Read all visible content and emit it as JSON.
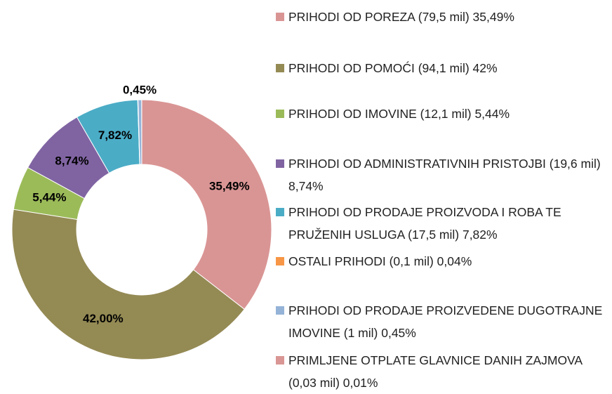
{
  "chart_data": {
    "type": "donut",
    "categories": [
      "PRIHODI OD POREZA (79,5 mil) 35,49%",
      "PRIHODI OD POMOĆI (94,1 mil) 42%",
      "PRIHODI OD IMOVINE (12,1 mil) 5,44%",
      "PRIHODI OD ADMINISTRATIVNIH PRISTOJBI (19,6 mil) 8,74%",
      "PRIHODI OD PRODAJE PROIZVODA I ROBA TE PRUŽENIH USLUGA (17,5 mil) 7,82%",
      "OSTALI PRIHODI (0,1 mil) 0,04%",
      "PRIHODI OD PRODAJE PROIZVEDENE DUGOTRAJNE IMOVINE (1 mil) 0,45%",
      "PRIMLJENE OTPLATE GLAVNICE DANIH ZAJMOVA (0,03 mil) 0,01%"
    ],
    "values": [
      35.49,
      42,
      5.44,
      8.74,
      7.82,
      0.04,
      0.45,
      0.01
    ],
    "value_labels": [
      "35,49%",
      "42,00%",
      "5,44%",
      "8,74%",
      "7,82%",
      null,
      "0,45%",
      null
    ],
    "colors": [
      "#d99594",
      "#948a54",
      "#9bbb59",
      "#8064a2",
      "#4bacc6",
      "#f79646",
      "#95b3d7",
      "#d99694"
    ],
    "legend": "right"
  }
}
